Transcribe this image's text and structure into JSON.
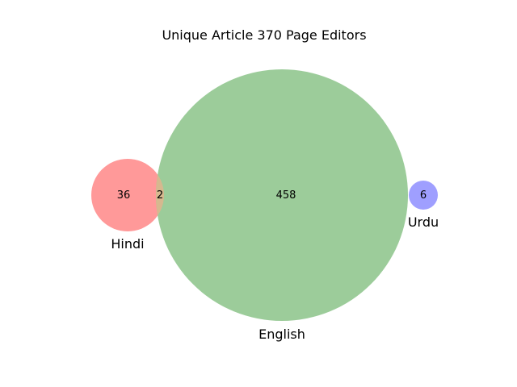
{
  "title": "Unique Article 370 Page Editors",
  "sets": {
    "hindi": {
      "label": "Hindi",
      "only_count": "36",
      "color": "#ff9999"
    },
    "english": {
      "label": "English",
      "only_count": "458",
      "color": "#9ccc9a"
    },
    "urdu": {
      "label": "Urdu",
      "only_count": "6",
      "color": "#9f9fff"
    }
  },
  "intersections": {
    "hindi_english": {
      "count": "2",
      "color": "#d6b88f"
    }
  }
}
